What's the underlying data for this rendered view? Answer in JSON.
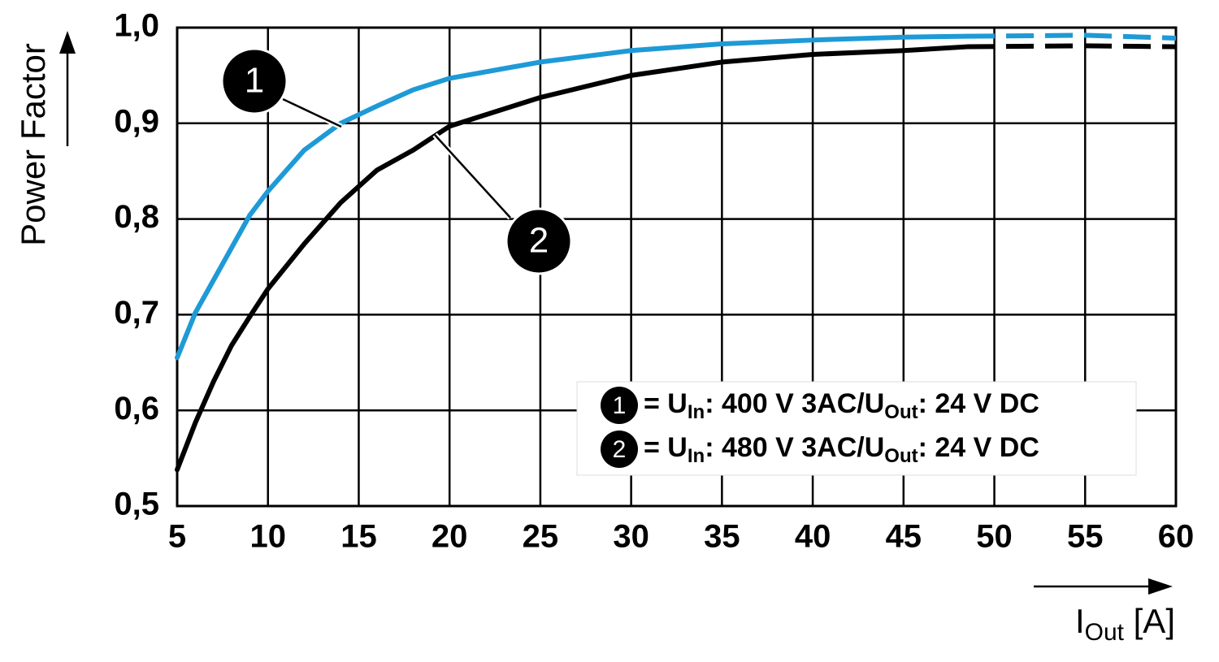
{
  "chart_data": {
    "type": "line",
    "y_label": "Power Factor",
    "x_label": [
      {
        "text": "I",
        "sub": false
      },
      {
        "text": "Out",
        "sub": true
      },
      {
        "text": " [A]",
        "sub": false
      }
    ],
    "x": [
      5,
      6,
      7,
      8,
      9,
      10,
      12,
      14,
      16,
      18,
      20,
      25,
      30,
      35,
      40,
      45,
      48.5,
      55,
      60
    ],
    "dashed_from_x": 48.5,
    "series": [
      {
        "marker_label": "1",
        "color": "#1e9ad6",
        "name_parts": [
          {
            "text": "= U",
            "sub": false
          },
          {
            "text": "In",
            "sub": true
          },
          {
            "text": ": 400 V 3AC/U",
            "sub": false
          },
          {
            "text": "Out",
            "sub": true
          },
          {
            "text": ": 24 V DC",
            "sub": false
          }
        ],
        "values": [
          0.655,
          0.702,
          0.736,
          0.77,
          0.804,
          0.829,
          0.872,
          0.9,
          0.918,
          0.935,
          0.947,
          0.964,
          0.976,
          0.983,
          0.987,
          0.99,
          0.991,
          0.992,
          0.989
        ]
      },
      {
        "marker_label": "2",
        "color": "#000000",
        "name_parts": [
          {
            "text": "= U",
            "sub": false
          },
          {
            "text": "In",
            "sub": true
          },
          {
            "text": ": 480 V 3AC/U",
            "sub": false
          },
          {
            "text": "Out",
            "sub": true
          },
          {
            "text": ": 24 V DC",
            "sub": false
          }
        ],
        "values": [
          0.538,
          0.587,
          0.63,
          0.668,
          0.698,
          0.727,
          0.774,
          0.817,
          0.851,
          0.872,
          0.897,
          0.927,
          0.95,
          0.964,
          0.972,
          0.976,
          0.98,
          0.981,
          0.98
        ]
      }
    ],
    "xlim": [
      5,
      60
    ],
    "xticks": [
      5,
      10,
      15,
      20,
      25,
      30,
      35,
      40,
      45,
      50,
      55,
      60
    ],
    "ylim": [
      0.5,
      1.0
    ],
    "yticks": [
      {
        "value": 0.5,
        "label": "0,5"
      },
      {
        "value": 0.6,
        "label": "0,6"
      },
      {
        "value": 0.7,
        "label": "0,7"
      },
      {
        "value": 0.8,
        "label": "0,8"
      },
      {
        "value": 0.9,
        "label": "0,9"
      },
      {
        "value": 1.0,
        "label": "1,0"
      }
    ],
    "grid": true
  }
}
